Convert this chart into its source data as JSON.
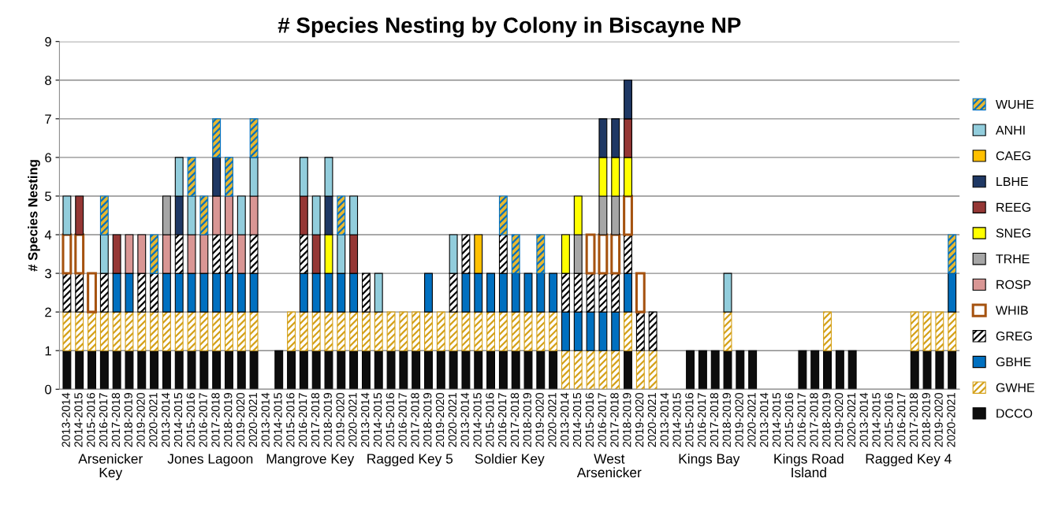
{
  "chart_data": {
    "type": "bar",
    "stacked": true,
    "title": "# Species Nesting by Colony in Biscayne NP",
    "ylabel": "# Species Nesting",
    "categories": [
      "2013-2014",
      "2014-2015",
      "2015-2016",
      "2016-2017",
      "2017-2018",
      "2018-2019",
      "2019-2020",
      "2020-2021",
      "2013-2014",
      "2014-2015",
      "2015-2016",
      "2016-2017",
      "2017-2018",
      "2018-2019",
      "2019-2020",
      "2020-2021",
      "2013-2014",
      "2014-2015",
      "2015-2016",
      "2016-2017",
      "2017-2018",
      "2018-2019",
      "2019-2020",
      "2020-2021",
      "2013-2014",
      "2014-2015",
      "2015-2016",
      "2016-2017",
      "2017-2018",
      "2018-2019",
      "2019-2020",
      "2020-2021",
      "2013-2014",
      "2014-2015",
      "2015-2016",
      "2016-2017",
      "2017-2018",
      "2018-2019",
      "2019-2020",
      "2020-2021",
      "2013-2014",
      "2014-2015",
      "2015-2016",
      "2016-2017",
      "2017-2018",
      "2018-2019",
      "2019-2020",
      "2020-2021",
      "2013-2014",
      "2014-2015",
      "2015-2016",
      "2016-2017",
      "2017-2018",
      "2018-2019",
      "2019-2020",
      "2020-2021",
      "2013-2014",
      "2014-2015",
      "2015-2016",
      "2016-2017",
      "2017-2018",
      "2018-2019",
      "2019-2020",
      "2020-2021",
      "2013-2014",
      "2014-2015",
      "2015-2016",
      "2016-2017",
      "2017-2018",
      "2018-2019",
      "2019-2020",
      "2020-2021"
    ],
    "annotations": [
      "Arsenicker\nKey",
      "Jones Lagoon",
      "Mangrove Key",
      "Ragged Key 5",
      "Soldier Key",
      "West\nArsenicker",
      "Kings Bay",
      "Kings Road\nIsland",
      "Ragged Key 4"
    ],
    "ylim": [
      0,
      9
    ],
    "yticks": [
      0,
      1,
      2,
      3,
      4,
      5,
      6,
      7,
      8,
      9
    ],
    "grid": "y",
    "legend": "right",
    "series": [
      {
        "name": "DCCO",
        "color": "#0d0d0d",
        "values": [
          1,
          1,
          1,
          1,
          1,
          1,
          1,
          1,
          1,
          1,
          1,
          1,
          1,
          1,
          1,
          1,
          null,
          1,
          1,
          1,
          1,
          1,
          1,
          1,
          1,
          1,
          1,
          1,
          1,
          1,
          1,
          1,
          1,
          1,
          1,
          1,
          1,
          1,
          1,
          1,
          null,
          null,
          null,
          null,
          null,
          1,
          null,
          null,
          null,
          null,
          1,
          1,
          1,
          1,
          1,
          1,
          null,
          null,
          null,
          1,
          1,
          1,
          1,
          1,
          null,
          null,
          null,
          null,
          1,
          1,
          1,
          1
        ]
      },
      {
        "name": "GWHE",
        "color": "#d4a017",
        "values": [
          1,
          1,
          1,
          1,
          1,
          1,
          1,
          1,
          1,
          1,
          1,
          1,
          1,
          1,
          1,
          1,
          null,
          null,
          1,
          1,
          1,
          1,
          1,
          1,
          1,
          1,
          1,
          1,
          1,
          1,
          1,
          1,
          1,
          1,
          1,
          1,
          1,
          1,
          1,
          1,
          1,
          1,
          1,
          1,
          1,
          1,
          1,
          1,
          null,
          null,
          null,
          null,
          null,
          1,
          null,
          null,
          null,
          null,
          null,
          null,
          null,
          1,
          null,
          null,
          null,
          null,
          null,
          null,
          1,
          1,
          1,
          1
        ]
      },
      {
        "name": "GBHE",
        "color": "#0070c0",
        "values": [
          null,
          null,
          null,
          null,
          1,
          1,
          null,
          null,
          1,
          1,
          1,
          1,
          1,
          1,
          1,
          1,
          null,
          null,
          null,
          1,
          1,
          1,
          1,
          1,
          null,
          null,
          null,
          null,
          null,
          1,
          null,
          null,
          1,
          1,
          1,
          1,
          1,
          1,
          1,
          1,
          1,
          1,
          1,
          1,
          1,
          1,
          null,
          null,
          null,
          null,
          null,
          null,
          null,
          null,
          null,
          null,
          null,
          null,
          null,
          null,
          null,
          null,
          null,
          null,
          null,
          null,
          null,
          null,
          null,
          null,
          null,
          1
        ]
      },
      {
        "name": "GREG",
        "color": "#000000",
        "values": [
          1,
          1,
          null,
          1,
          null,
          null,
          1,
          1,
          null,
          1,
          null,
          null,
          1,
          1,
          null,
          1,
          null,
          null,
          null,
          1,
          null,
          null,
          null,
          null,
          1,
          null,
          null,
          null,
          null,
          null,
          null,
          1,
          1,
          null,
          null,
          1,
          null,
          null,
          null,
          null,
          1,
          1,
          1,
          1,
          1,
          1,
          1,
          1,
          null,
          null,
          null,
          null,
          null,
          null,
          null,
          null,
          null,
          null,
          null,
          null,
          null,
          null,
          null,
          null,
          null,
          null,
          null,
          null,
          null,
          null,
          null,
          null
        ]
      },
      {
        "name": "WHIB",
        "color": "#a5520f",
        "values": [
          1,
          1,
          1,
          null,
          null,
          null,
          null,
          null,
          null,
          null,
          null,
          null,
          null,
          null,
          null,
          null,
          null,
          null,
          null,
          null,
          null,
          null,
          null,
          null,
          null,
          null,
          null,
          null,
          null,
          null,
          null,
          null,
          null,
          null,
          null,
          null,
          null,
          null,
          null,
          null,
          null,
          null,
          1,
          1,
          1,
          1,
          1,
          null,
          null,
          null,
          null,
          null,
          null,
          null,
          null,
          null,
          null,
          null,
          null,
          null,
          null,
          null,
          null,
          null,
          null,
          null,
          null,
          null,
          null,
          null,
          null,
          null
        ]
      },
      {
        "name": "ROSP",
        "color": "#d99694",
        "values": [
          null,
          null,
          null,
          null,
          null,
          1,
          1,
          null,
          1,
          null,
          1,
          1,
          1,
          1,
          1,
          1,
          null,
          null,
          null,
          null,
          null,
          null,
          null,
          null,
          null,
          null,
          null,
          null,
          null,
          null,
          null,
          null,
          null,
          null,
          null,
          null,
          null,
          null,
          null,
          null,
          null,
          null,
          null,
          null,
          null,
          null,
          null,
          null,
          null,
          null,
          null,
          null,
          null,
          null,
          null,
          null,
          null,
          null,
          null,
          null,
          null,
          null,
          null,
          null,
          null,
          null,
          null,
          null,
          null,
          null,
          null,
          null
        ]
      },
      {
        "name": "TRHE",
        "color": "#a6a6a6",
        "values": [
          null,
          null,
          null,
          null,
          null,
          null,
          null,
          null,
          1,
          null,
          null,
          null,
          null,
          null,
          null,
          null,
          null,
          null,
          null,
          null,
          null,
          null,
          null,
          null,
          null,
          null,
          null,
          null,
          null,
          null,
          null,
          null,
          null,
          null,
          null,
          null,
          null,
          null,
          null,
          null,
          null,
          1,
          null,
          1,
          1,
          null,
          null,
          null,
          null,
          null,
          null,
          null,
          null,
          null,
          null,
          null,
          null,
          null,
          null,
          null,
          null,
          null,
          null,
          null,
          null,
          null,
          null,
          null,
          null,
          null,
          null,
          null
        ]
      },
      {
        "name": "SNEG",
        "color": "#ffff00",
        "values": [
          null,
          null,
          null,
          null,
          null,
          null,
          null,
          null,
          null,
          null,
          null,
          null,
          null,
          null,
          null,
          null,
          null,
          null,
          null,
          null,
          null,
          1,
          null,
          null,
          null,
          null,
          null,
          null,
          null,
          null,
          null,
          null,
          null,
          null,
          null,
          null,
          null,
          null,
          null,
          null,
          1,
          1,
          null,
          1,
          1,
          1,
          null,
          null,
          null,
          null,
          null,
          null,
          null,
          null,
          null,
          null,
          null,
          null,
          null,
          null,
          null,
          null,
          null,
          null,
          null,
          null,
          null,
          null,
          null,
          null,
          null,
          null
        ]
      },
      {
        "name": "REEG",
        "color": "#953735",
        "values": [
          null,
          1,
          null,
          null,
          1,
          null,
          null,
          null,
          null,
          null,
          null,
          null,
          null,
          null,
          null,
          null,
          null,
          null,
          null,
          1,
          1,
          null,
          null,
          1,
          null,
          null,
          null,
          null,
          null,
          null,
          null,
          null,
          null,
          null,
          null,
          null,
          null,
          null,
          null,
          null,
          null,
          null,
          null,
          null,
          null,
          1,
          null,
          null,
          null,
          null,
          null,
          null,
          null,
          null,
          null,
          null,
          null,
          null,
          null,
          null,
          null,
          null,
          null,
          null,
          null,
          null,
          null,
          null,
          null,
          null,
          null,
          null
        ]
      },
      {
        "name": "LBHE",
        "color": "#1f3864",
        "values": [
          null,
          null,
          null,
          null,
          null,
          null,
          null,
          null,
          null,
          1,
          null,
          null,
          1,
          null,
          null,
          null,
          null,
          null,
          null,
          null,
          null,
          1,
          null,
          null,
          null,
          null,
          null,
          null,
          null,
          null,
          null,
          null,
          null,
          null,
          null,
          null,
          null,
          null,
          null,
          null,
          null,
          null,
          null,
          1,
          1,
          1,
          null,
          null,
          null,
          null,
          null,
          null,
          null,
          null,
          null,
          null,
          null,
          null,
          null,
          null,
          null,
          null,
          null,
          null,
          null,
          null,
          null,
          null,
          null,
          null,
          null,
          null
        ]
      },
      {
        "name": "CAEG",
        "color": "#ffc000",
        "values": [
          null,
          null,
          null,
          null,
          null,
          null,
          null,
          null,
          null,
          null,
          null,
          null,
          null,
          null,
          null,
          null,
          null,
          null,
          null,
          null,
          null,
          null,
          null,
          null,
          null,
          null,
          null,
          null,
          null,
          null,
          null,
          null,
          null,
          1,
          null,
          null,
          null,
          null,
          null,
          null,
          null,
          null,
          null,
          null,
          null,
          null,
          null,
          null,
          null,
          null,
          null,
          null,
          null,
          null,
          null,
          null,
          null,
          null,
          null,
          null,
          null,
          null,
          null,
          null,
          null,
          null,
          null,
          null,
          null,
          null,
          null,
          null
        ]
      },
      {
        "name": "ANHI",
        "color": "#92cddc",
        "values": [
          1,
          null,
          null,
          1,
          null,
          null,
          null,
          null,
          null,
          1,
          1,
          null,
          null,
          null,
          1,
          1,
          null,
          null,
          null,
          1,
          1,
          1,
          1,
          1,
          null,
          1,
          null,
          null,
          null,
          null,
          null,
          1,
          null,
          null,
          null,
          null,
          null,
          null,
          null,
          null,
          null,
          null,
          null,
          null,
          null,
          null,
          null,
          null,
          null,
          null,
          null,
          null,
          null,
          1,
          null,
          null,
          null,
          null,
          null,
          null,
          null,
          null,
          null,
          null,
          null,
          null,
          null,
          null,
          null,
          null,
          null,
          null
        ]
      },
      {
        "name": "WUHE",
        "color": "#0070c0",
        "values": [
          null,
          null,
          null,
          1,
          null,
          null,
          null,
          1,
          null,
          null,
          1,
          1,
          1,
          1,
          null,
          1,
          null,
          null,
          null,
          null,
          null,
          null,
          1,
          null,
          null,
          null,
          null,
          null,
          null,
          null,
          null,
          null,
          null,
          null,
          null,
          1,
          1,
          null,
          1,
          null,
          null,
          null,
          null,
          null,
          null,
          null,
          null,
          null,
          null,
          null,
          null,
          null,
          null,
          null,
          null,
          null,
          null,
          null,
          null,
          null,
          null,
          null,
          null,
          null,
          null,
          null,
          null,
          null,
          null,
          null,
          null,
          1
        ]
      }
    ]
  }
}
